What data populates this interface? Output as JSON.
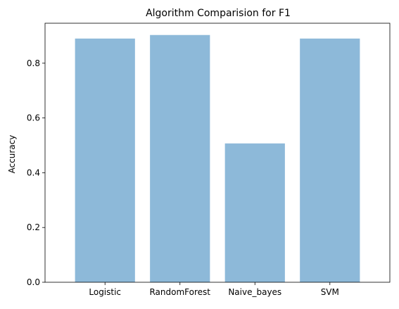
{
  "chart_data": {
    "type": "bar",
    "title": "Algorithm Comparision for F1",
    "xlabel": "",
    "ylabel": "Accuracy",
    "categories": [
      "Logistic",
      "RandomForest",
      "Naive_bayes",
      "SVM"
    ],
    "values": [
      0.89,
      0.903,
      0.507,
      0.89
    ],
    "ylim": [
      0,
      0.946
    ],
    "yticks": [
      0.0,
      0.2,
      0.4,
      0.6,
      0.8
    ],
    "ytick_labels": [
      "0.0",
      "0.2",
      "0.4",
      "0.6",
      "0.8"
    ],
    "bar_color": "#8db9d9",
    "grid": false,
    "legend": "none"
  }
}
